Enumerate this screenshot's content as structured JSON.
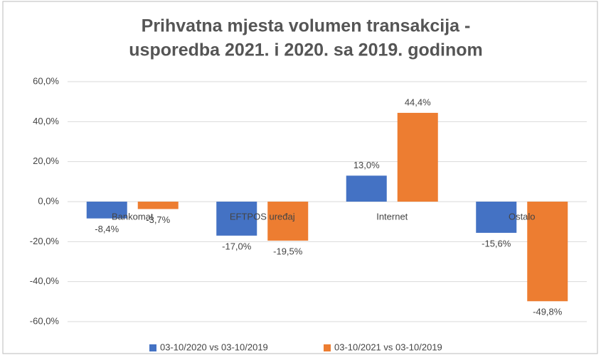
{
  "chart_data": {
    "type": "bar",
    "title": [
      "Prihvatna mjesta volumen transakcija -",
      "usporedba 2021. i 2020. sa 2019. godinom"
    ],
    "categories": [
      "Bankomat",
      "EFTPOS uređaj",
      "Internet",
      "Ostalo"
    ],
    "series": [
      {
        "name": "03-10/2020 vs 03-10/2019",
        "color": "#4472c4",
        "values": [
          -8.4,
          -17.0,
          13.0,
          -15.6
        ],
        "value_labels": [
          "-8,4%",
          "-17,0%",
          "13,0%",
          "-15,6%"
        ]
      },
      {
        "name": "03-10/2021 vs 03-10/2019",
        "color": "#ed7d31",
        "values": [
          -3.7,
          -19.5,
          44.4,
          -49.8
        ],
        "value_labels": [
          "-3,7%",
          "-19,5%",
          "44,4%",
          "-49,8%"
        ]
      }
    ],
    "ylim": [
      -60,
      60
    ],
    "yticks": [
      {
        "value": -60,
        "label": "-60,0%"
      },
      {
        "value": -40,
        "label": "-40,0%"
      },
      {
        "value": -20,
        "label": "-20,0%"
      },
      {
        "value": 0,
        "label": "0,0%"
      },
      {
        "value": 20,
        "label": "20,0%"
      },
      {
        "value": 40,
        "label": "40,0%"
      },
      {
        "value": 60,
        "label": "60,0%"
      }
    ],
    "grid": true,
    "legend": "bottom"
  }
}
